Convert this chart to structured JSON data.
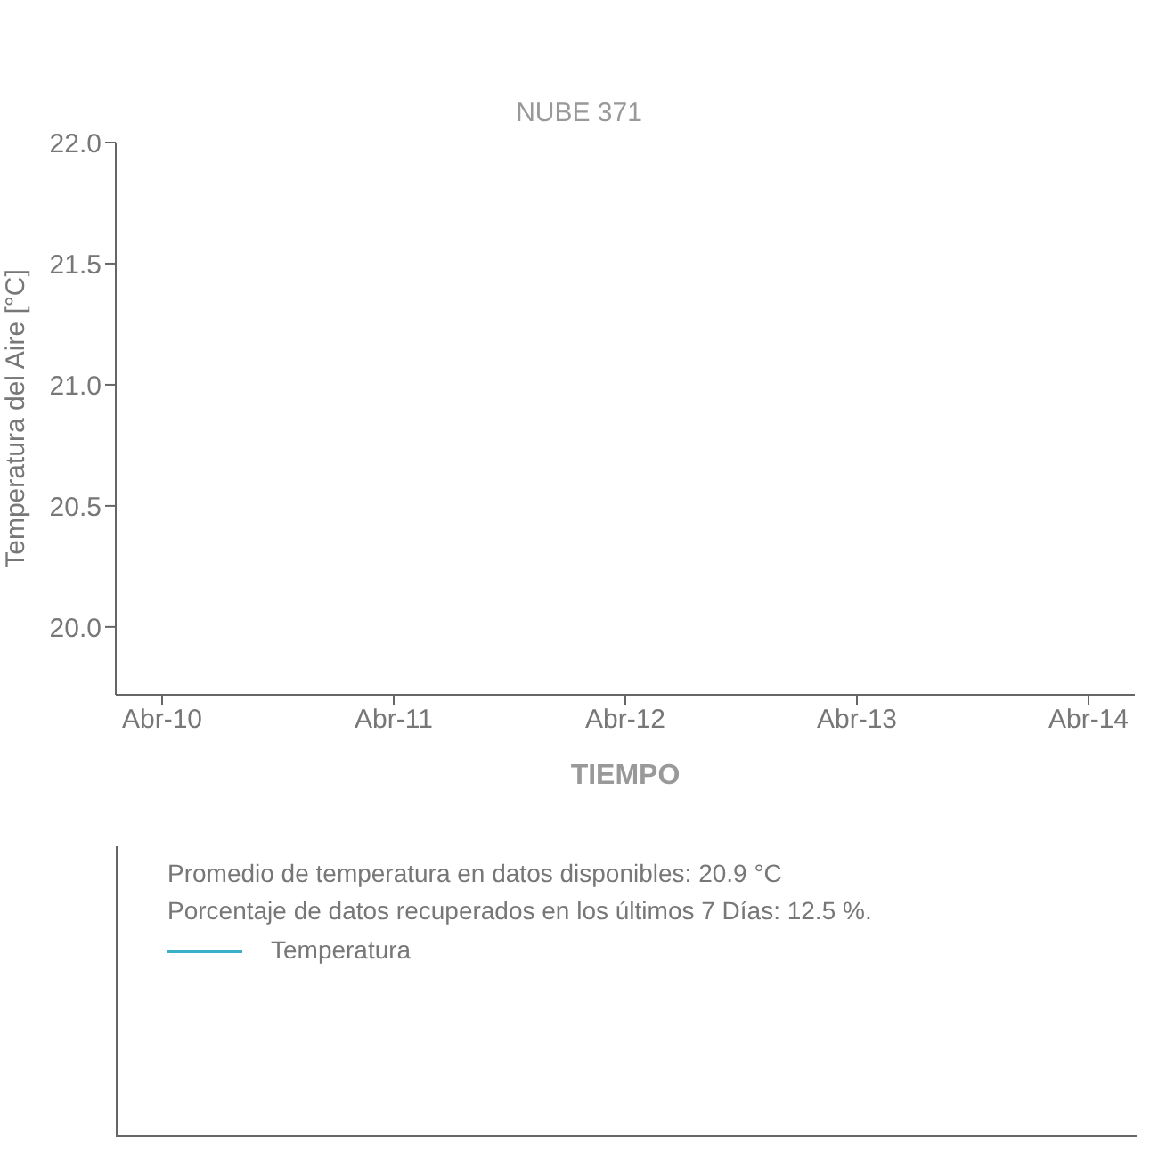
{
  "chart_data": {
    "type": "line",
    "title": "NUBE 371",
    "xlabel": "TIEMPO",
    "ylabel": "Temperatura del Aire [°C]",
    "annotations": [
      "Promedio de temperatura en datos disponibles: 20.9 °C",
      "Porcentaje de datos recuperados en los últimos 7 Días: 12.5 %."
    ],
    "categories": [
      "Abr-10",
      "Abr-11",
      "Abr-12",
      "Abr-13",
      "Abr-14"
    ],
    "series": [
      {
        "name": "Temperatura",
        "color": "#3aafc8",
        "values": [
          null,
          null,
          null,
          null,
          null
        ]
      }
    ],
    "ylim": [
      19.72,
      22.0
    ],
    "yticks": [
      {
        "value": 20,
        "label": "20.0"
      },
      20.5,
      {
        "value": 21,
        "label": "21.0"
      },
      21.5,
      {
        "value": 22,
        "label": "22.0"
      }
    ],
    "legend": "bottom"
  }
}
